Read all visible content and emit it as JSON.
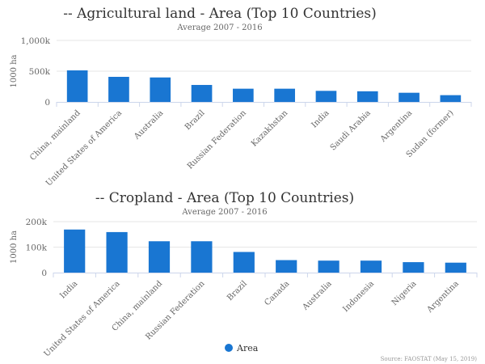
{
  "chart_data": [
    {
      "type": "bar",
      "title": "-- Agricultural land - Area (Top 10 Countries)",
      "subtitle": "Average 2007 - 2016",
      "ylabel": "1000 ha",
      "ylim": [
        0,
        1000000
      ],
      "yticks": [
        0,
        500000,
        1000000
      ],
      "ytick_labels": [
        "0",
        "500k",
        "1,000k"
      ],
      "categories": [
        "China, mainland",
        "United States of America",
        "Australia",
        "Brazil",
        "Russian Federation",
        "Kazakhstan",
        "India",
        "Saudi Arabia",
        "Argentina",
        "Sudan (former)"
      ],
      "values": [
        513000,
        408000,
        398000,
        276000,
        215000,
        215000,
        180000,
        173000,
        149000,
        110000
      ],
      "grid": true
    },
    {
      "type": "bar",
      "title": "-- Cropland - Area (Top 10 Countries)",
      "subtitle": "Average 2007 - 2016",
      "ylabel": "1000 ha",
      "ylim": [
        0,
        200000
      ],
      "yticks": [
        0,
        100000,
        200000
      ],
      "ytick_labels": [
        "0",
        "100k",
        "200k"
      ],
      "categories": [
        "India",
        "United States of America",
        "China, mainland",
        "Russian Federation",
        "Brazil",
        "Canada",
        "Australia",
        "Indonesia",
        "Nigeria",
        "Argentina"
      ],
      "values": [
        169000,
        159000,
        123000,
        123000,
        81000,
        49000,
        47000,
        47000,
        41000,
        39000
      ],
      "grid": true
    }
  ],
  "legend": {
    "label": "Area",
    "color": "#1976d2",
    "placement": "bottom-center"
  },
  "source": "Source: FAOSTAT (May 15, 2019)"
}
